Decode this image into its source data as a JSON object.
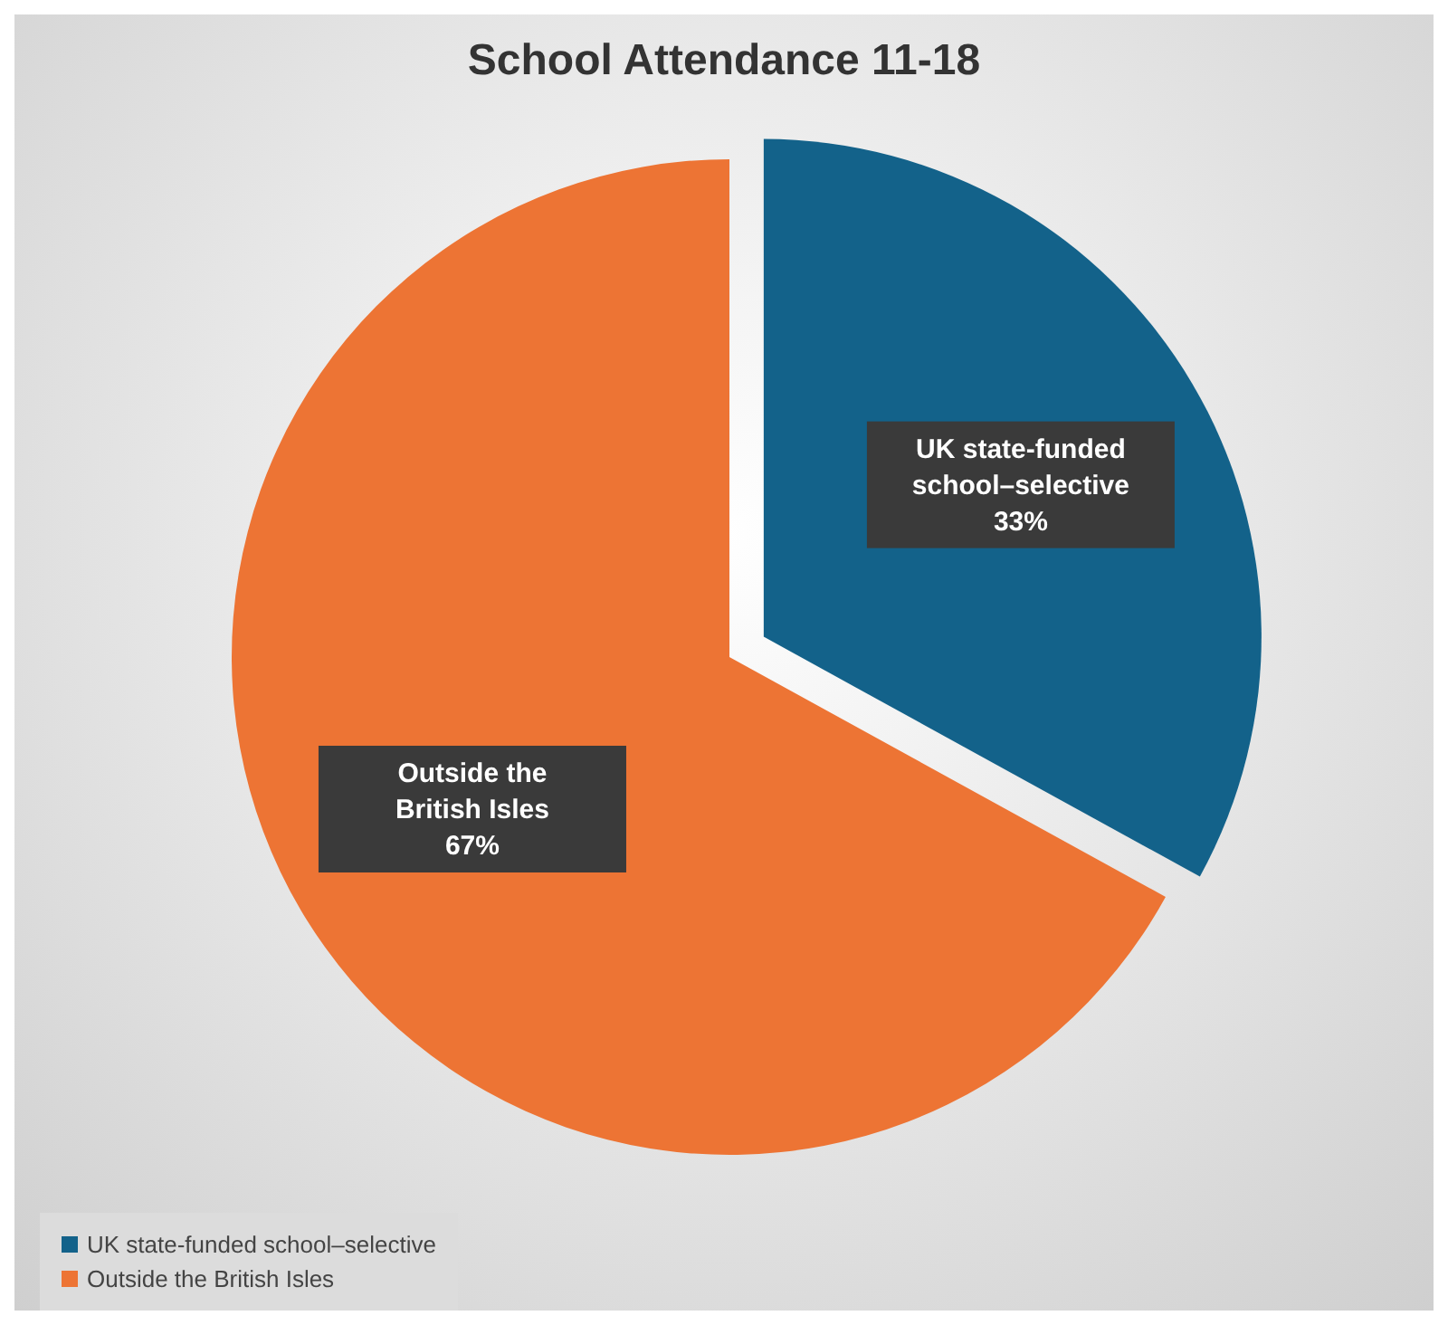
{
  "chart_data": {
    "type": "pie",
    "title": "School Attendance 11-18",
    "categories": [
      "UK state-funded school–selective",
      "Outside the British Isles"
    ],
    "values": [
      33,
      67
    ],
    "colors": [
      "#13628a",
      "#ed7434"
    ],
    "value_labels": [
      "33%",
      "67%"
    ],
    "legend": "bottom left"
  }
}
